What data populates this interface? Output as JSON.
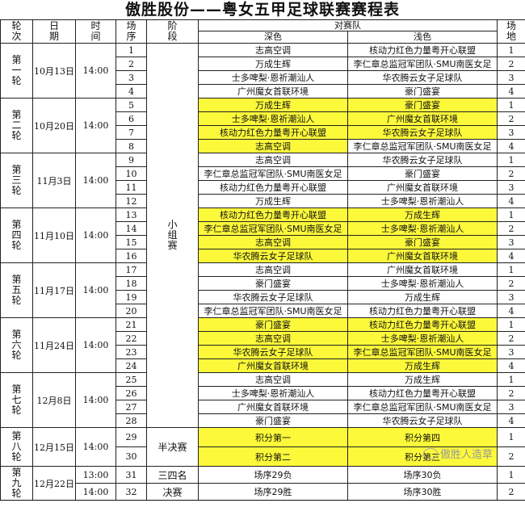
{
  "title": "傲胜股份——粤女五甲足球联赛赛程表",
  "headers": {
    "round": "轮次",
    "date": "日期",
    "time": "时间",
    "match_no": "场序",
    "stage": "阶段",
    "teams": "对赛队",
    "dark": "深色",
    "light": "浅色",
    "venue": "场地"
  },
  "highlight_color": "#fcf93a",
  "rounds": [
    {
      "label": "第一轮",
      "date": "10月13日",
      "time": "14:00",
      "matches": [
        {
          "no": "1",
          "dark": "志高空调",
          "light": "核动力红色力量粤开心联盟",
          "venue": "1",
          "hl": false
        },
        {
          "no": "2",
          "dark": "万成生辉",
          "light": "李仁章总监冠军团队·SMU南医女足",
          "venue": "2",
          "hl": false
        },
        {
          "no": "3",
          "dark": "士多啤梨·恩祈潮汕人",
          "light": "华农腾云女子足球队",
          "venue": "3",
          "hl": false
        },
        {
          "no": "4",
          "dark": "广州魔女首联环境",
          "light": "豪门盛宴",
          "venue": "4",
          "hl": false
        }
      ]
    },
    {
      "label": "第二轮",
      "date": "10月20日",
      "time": "14:00",
      "matches": [
        {
          "no": "5",
          "dark": "万成生辉",
          "light": "豪门盛宴",
          "venue": "1",
          "hl": true
        },
        {
          "no": "6",
          "dark": "士多啤梨·恩祈潮汕人",
          "light": "广州魔女首联环境",
          "venue": "2",
          "hl": true
        },
        {
          "no": "7",
          "dark": "核动力红色力量粤开心联盟",
          "light": "华农腾云女子足球队",
          "venue": "3",
          "hl": true
        },
        {
          "no": "8",
          "dark": "志高空调",
          "light": "李仁章总监冠军团队·SMU南医女足",
          "venue": "4",
          "hl": true
        }
      ]
    },
    {
      "label": "第三轮",
      "date": "11月3日",
      "time": "14:00",
      "matches": [
        {
          "no": "9",
          "dark": "志高空调",
          "light": "华农腾云女子足球队",
          "venue": "1",
          "hl": false
        },
        {
          "no": "10",
          "dark": "李仁章总监冠军团队·SMU南医女足",
          "light": "豪门盛宴",
          "venue": "2",
          "hl": false
        },
        {
          "no": "11",
          "dark": "核动力红色力量粤开心联盟",
          "light": "广州魔女首联环境",
          "venue": "3",
          "hl": false
        },
        {
          "no": "12",
          "dark": "万成生辉",
          "light": "士多啤梨·恩祈潮汕人",
          "venue": "4",
          "hl": false
        }
      ]
    },
    {
      "label": "第四轮",
      "date": "11月10日",
      "time": "14:00",
      "matches": [
        {
          "no": "13",
          "dark": "核动力红色力量粤开心联盟",
          "light": "万成生辉",
          "venue": "1",
          "hl": true
        },
        {
          "no": "14",
          "dark": "李仁章总监冠军团队·SMU南医女足",
          "light": "士多啤梨·恩祈潮汕人",
          "venue": "2",
          "hl": true
        },
        {
          "no": "15",
          "dark": "志高空调",
          "light": "豪门盛宴",
          "venue": "3",
          "hl": true
        },
        {
          "no": "16",
          "dark": "华农腾云女子足球队",
          "light": "广州魔女首联环境",
          "venue": "4",
          "hl": true
        }
      ]
    },
    {
      "label": "第五轮",
      "date": "11月17日",
      "time": "14:00",
      "matches": [
        {
          "no": "17",
          "dark": "志高空调",
          "light": "广州魔女首联环境",
          "venue": "1",
          "hl": false
        },
        {
          "no": "18",
          "dark": "豪门盛宴",
          "light": "士多啤梨·恩祈潮汕人",
          "venue": "2",
          "hl": false
        },
        {
          "no": "19",
          "dark": "华农腾云女子足球队",
          "light": "万成生辉",
          "venue": "3",
          "hl": false
        },
        {
          "no": "20",
          "dark": "李仁章总监冠军团队·SMU南医女足",
          "light": "核动力红色力量粤开心联盟",
          "venue": "4",
          "hl": false
        }
      ]
    },
    {
      "label": "第六轮",
      "date": "11月24日",
      "time": "14:00",
      "matches": [
        {
          "no": "21",
          "dark": "豪门盛宴",
          "light": "核动力红色力量粤开心联盟",
          "venue": "1",
          "hl": true
        },
        {
          "no": "22",
          "dark": "志高空调",
          "light": "士多啤梨·恩祈潮汕人",
          "venue": "2",
          "hl": true
        },
        {
          "no": "23",
          "dark": "华农腾云女子足球队",
          "light": "李仁章总监冠军团队·SMU南医女足",
          "venue": "3",
          "hl": true
        },
        {
          "no": "24",
          "dark": "广州魔女首联环境",
          "light": "万成生辉",
          "venue": "4",
          "hl": true
        }
      ]
    },
    {
      "label": "第七轮",
      "date": "12月8日",
      "time": "14:00",
      "matches": [
        {
          "no": "25",
          "dark": "志高空调",
          "light": "万成生辉",
          "venue": "1",
          "hl": false
        },
        {
          "no": "26",
          "dark": "士多啤梨·恩祈潮汕人",
          "light": "核动力红色力量粤开心联盟",
          "venue": "2",
          "hl": false
        },
        {
          "no": "27",
          "dark": "广州魔女首联环境",
          "light": "李仁章总监冠军团队·SMU南医女足",
          "venue": "3",
          "hl": false
        },
        {
          "no": "28",
          "dark": "豪门盛宴",
          "light": "华农腾云女子足球队",
          "venue": "4",
          "hl": false
        }
      ]
    },
    {
      "label": "第八轮",
      "date": "12月15日",
      "time": "14:00",
      "matches": [
        {
          "no": "29",
          "dark": "积分第一",
          "light": "积分第四",
          "venue": "1",
          "hl": true
        },
        {
          "no": "30",
          "dark": "积分第二",
          "light": "积分第三",
          "venue": "2",
          "hl": true
        }
      ]
    },
    {
      "label": "第九轮",
      "date": "12月22日",
      "matches": [
        {
          "no": "31",
          "time": "13:00",
          "stage": "三四名",
          "dark": "场序29负",
          "light": "场序30负",
          "venue": "1",
          "hl": false
        },
        {
          "no": "32",
          "time": "14:00",
          "stage": "决赛",
          "dark": "场序29胜",
          "light": "场序30胜",
          "venue": "2",
          "hl": false
        }
      ]
    }
  ],
  "stages": {
    "group": "小组赛",
    "semi": "半决赛"
  },
  "watermark": "傲胜人造草",
  "watermark_icon": "wechat-icon"
}
